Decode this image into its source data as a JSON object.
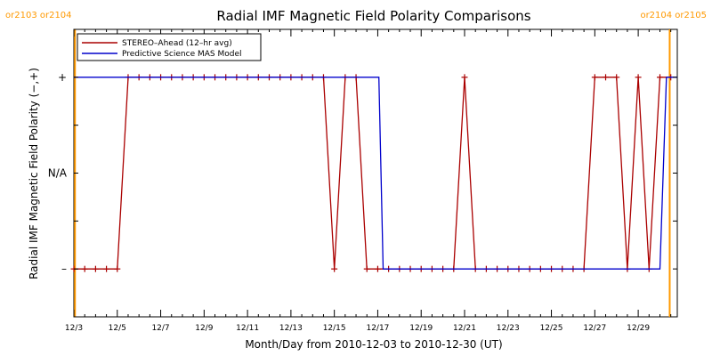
{
  "chart_data": {
    "type": "line",
    "title": "Radial IMF Magnetic Field Polarity Comparisons",
    "xlabel": "Month/Day from 2010-12-03 to 2010-12-30 (UT)",
    "ylabel": "Radial IMF Magnetic Field Polarity (−,+)",
    "x_unit": "days since 2010-12-03 00:00 UT",
    "xlim": [
      0,
      27.8
    ],
    "ylim": [
      -1.5,
      1.5
    ],
    "x_ticks": [
      {
        "value": 0,
        "label": "12/3"
      },
      {
        "value": 2,
        "label": "12/5"
      },
      {
        "value": 4,
        "label": "12/7"
      },
      {
        "value": 6,
        "label": "12/9"
      },
      {
        "value": 8,
        "label": "12/11"
      },
      {
        "value": 10,
        "label": "12/13"
      },
      {
        "value": 12,
        "label": "12/15"
      },
      {
        "value": 14,
        "label": "12/17"
      },
      {
        "value": 16,
        "label": "12/19"
      },
      {
        "value": 18,
        "label": "12/21"
      },
      {
        "value": 20,
        "label": "12/23"
      },
      {
        "value": 22,
        "label": "12/25"
      },
      {
        "value": 24,
        "label": "12/27"
      },
      {
        "value": 26,
        "label": "12/29"
      }
    ],
    "y_ticks": [
      {
        "value": 1,
        "label": "+"
      },
      {
        "value": 0,
        "label": "N/A"
      },
      {
        "value": -1,
        "label": "–"
      }
    ],
    "carrington_markers": [
      {
        "x": 0.05,
        "label": "or2103 or2104",
        "side": "left"
      },
      {
        "x": 27.45,
        "label": "or2104 or2105",
        "side": "right"
      }
    ],
    "legend": {
      "position": "top-left"
    },
    "series": [
      {
        "name": "STEREO–Ahead (12–hr avg)",
        "color": "#aa0000",
        "marker": "+",
        "points": [
          [
            0.0,
            -1
          ],
          [
            0.5,
            -1
          ],
          [
            1.0,
            -1
          ],
          [
            1.5,
            -1
          ],
          [
            2.0,
            -1
          ],
          [
            2.5,
            1
          ],
          [
            3.0,
            1
          ],
          [
            3.5,
            1
          ],
          [
            4.0,
            1
          ],
          [
            4.5,
            1
          ],
          [
            5.0,
            1
          ],
          [
            5.5,
            1
          ],
          [
            6.0,
            1
          ],
          [
            6.5,
            1
          ],
          [
            7.0,
            1
          ],
          [
            7.5,
            1
          ],
          [
            8.0,
            1
          ],
          [
            8.5,
            1
          ],
          [
            9.0,
            1
          ],
          [
            9.5,
            1
          ],
          [
            10.0,
            1
          ],
          [
            10.5,
            1
          ],
          [
            11.0,
            1
          ],
          [
            11.5,
            1
          ],
          [
            12.0,
            -1
          ],
          [
            12.5,
            1
          ],
          [
            13.0,
            1
          ],
          [
            13.5,
            -1
          ],
          [
            14.0,
            -1
          ],
          [
            14.5,
            -1
          ],
          [
            15.0,
            -1
          ],
          [
            15.5,
            -1
          ],
          [
            16.0,
            -1
          ],
          [
            16.5,
            -1
          ],
          [
            17.0,
            -1
          ],
          [
            17.5,
            -1
          ],
          [
            18.0,
            1
          ],
          [
            18.5,
            -1
          ],
          [
            19.0,
            -1
          ],
          [
            19.5,
            -1
          ],
          [
            20.0,
            -1
          ],
          [
            20.5,
            -1
          ],
          [
            21.0,
            -1
          ],
          [
            21.5,
            -1
          ],
          [
            22.0,
            -1
          ],
          [
            22.5,
            -1
          ],
          [
            23.0,
            -1
          ],
          [
            23.5,
            -1
          ],
          [
            24.0,
            1
          ],
          [
            24.5,
            1
          ],
          [
            25.0,
            1
          ],
          [
            25.5,
            -1
          ],
          [
            26.0,
            1
          ],
          [
            26.5,
            -1
          ],
          [
            27.0,
            1
          ],
          [
            27.5,
            1
          ]
        ]
      },
      {
        "name": "Predictive Science MAS Model",
        "color": "#0000cc",
        "marker": "",
        "points": [
          [
            0.0,
            1
          ],
          [
            14.05,
            1
          ],
          [
            14.25,
            -1
          ],
          [
            27.0,
            -1
          ],
          [
            27.3,
            1
          ],
          [
            27.8,
            1
          ]
        ]
      }
    ]
  }
}
